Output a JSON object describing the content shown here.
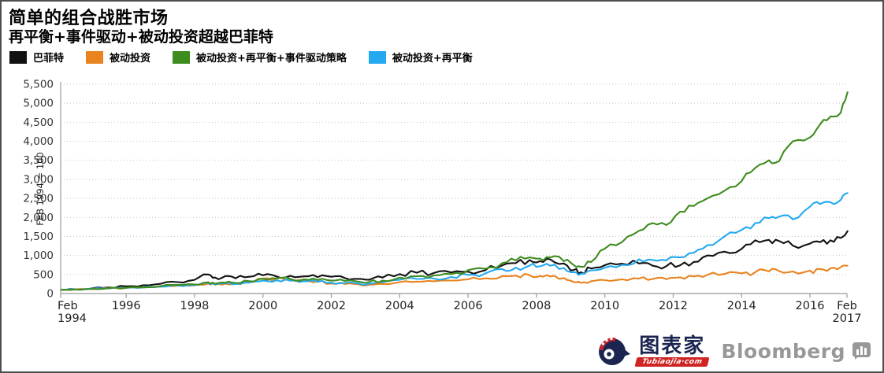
{
  "header": {
    "title": "简单的组合战胜市场",
    "subtitle": "再平衡+事件驱动+被动投资超越巴菲特"
  },
  "footer": {
    "tubiaojia_name": "图表家",
    "tubiaojia_domain": "Tubiaojia·com",
    "bloomberg": "Bloomberg"
  },
  "chart_data": {
    "type": "line",
    "title": "简单的组合战胜市场",
    "subtitle": "再平衡+事件驱动+被动投资超越巴菲特",
    "ylabel": "FEB 1994 = 100",
    "grid": true,
    "legend_position": "top",
    "y_axis": {
      "min": 0,
      "max": 5500,
      "step": 500,
      "tick_labels": [
        "0",
        "500",
        "1,000",
        "1,500",
        "2,000",
        "2,500",
        "3,000",
        "3,500",
        "4,000",
        "4,500",
        "5,000",
        "5,500"
      ]
    },
    "x_axis": {
      "start_year": 1994.083,
      "end_year": 2017.083,
      "ticks": [
        {
          "label": "Feb\n1994",
          "year": 1994.083,
          "anchor": "start"
        },
        {
          "label": "1996",
          "year": 1996
        },
        {
          "label": "1998",
          "year": 1998
        },
        {
          "label": "2000",
          "year": 2000
        },
        {
          "label": "2002",
          "year": 2002
        },
        {
          "label": "2004",
          "year": 2004
        },
        {
          "label": "2006",
          "year": 2006
        },
        {
          "label": "2008",
          "year": 2008
        },
        {
          "label": "2010",
          "year": 2010
        },
        {
          "label": "2012",
          "year": 2012
        },
        {
          "label": "2014",
          "year": 2014
        },
        {
          "label": "2016",
          "year": 2016
        },
        {
          "label": "Feb\n2017",
          "year": 2017.083,
          "anchor": "middle"
        }
      ]
    },
    "x": [
      1994.1,
      1994.5,
      1995,
      1995.5,
      1996,
      1996.5,
      1997,
      1997.5,
      1998,
      1998.4,
      1998.6,
      1998.9,
      1999.2,
      1999.6,
      2000,
      2000.4,
      2000.8,
      2001.2,
      2001.6,
      2002,
      2002.4,
      2002.8,
      2003.1,
      2003.5,
      2004,
      2004.5,
      2005,
      2005.5,
      2006,
      2006.5,
      2007,
      2007.4,
      2007.8,
      2008.1,
      2008.4,
      2008.8,
      2009.1,
      2009.3,
      2009.6,
      2010,
      2010.5,
      2011,
      2011.4,
      2011.8,
      2012.2,
      2012.6,
      2013,
      2013.5,
      2014,
      2014.4,
      2014.8,
      2015.1,
      2015.5,
      2016,
      2016.3,
      2016.6,
      2016.9,
      2017.1
    ],
    "series": [
      {
        "name": "巴菲特",
        "color": "#111111",
        "values": [
          100,
          110,
          135,
          160,
          190,
          220,
          255,
          300,
          360,
          500,
          420,
          460,
          400,
          440,
          480,
          450,
          465,
          450,
          430,
          440,
          405,
          385,
          360,
          420,
          510,
          545,
          540,
          555,
          575,
          610,
          740,
          800,
          880,
          850,
          900,
          790,
          620,
          560,
          660,
          745,
          785,
          790,
          730,
          720,
          740,
          830,
          1000,
          1100,
          1170,
          1400,
          1410,
          1380,
          1260,
          1310,
          1350,
          1400,
          1460,
          1640
        ]
      },
      {
        "name": "被动投资",
        "color": "#E8831D",
        "values": [
          100,
          105,
          120,
          132,
          145,
          158,
          180,
          205,
          215,
          262,
          232,
          256,
          266,
          310,
          390,
          392,
          378,
          350,
          320,
          262,
          250,
          242,
          230,
          255,
          300,
          312,
          322,
          342,
          372,
          400,
          460,
          470,
          482,
          462,
          450,
          408,
          300,
          280,
          325,
          352,
          372,
          392,
          382,
          378,
          425,
          450,
          490,
          512,
          530,
          560,
          582,
          590,
          578,
          602,
          640,
          662,
          692,
          730
        ]
      },
      {
        "name": "被动投资+再平衡+事件驱动策略",
        "color": "#3E8C1E",
        "values": [
          100,
          108,
          125,
          142,
          152,
          168,
          195,
          225,
          240,
          295,
          255,
          285,
          280,
          325,
          390,
          400,
          385,
          375,
          355,
          340,
          330,
          310,
          300,
          340,
          420,
          455,
          475,
          510,
          615,
          650,
          800,
          870,
          950,
          920,
          950,
          850,
          740,
          700,
          830,
          1180,
          1350,
          1650,
          1850,
          1800,
          2150,
          2300,
          2500,
          2700,
          2950,
          3300,
          3500,
          3480,
          4000,
          4100,
          4450,
          4650,
          4750,
          5290
        ]
      },
      {
        "name": "被动投资+再平衡",
        "color": "#24A9F0",
        "values": [
          100,
          106,
          122,
          136,
          148,
          162,
          185,
          212,
          222,
          272,
          240,
          262,
          252,
          288,
          340,
          350,
          338,
          325,
          305,
          285,
          278,
          262,
          255,
          295,
          360,
          382,
          392,
          435,
          490,
          525,
          640,
          680,
          735,
          715,
          730,
          670,
          560,
          520,
          610,
          680,
          755,
          900,
          880,
          870,
          950,
          1070,
          1270,
          1500,
          1670,
          1850,
          1980,
          2020,
          1950,
          2280,
          2350,
          2400,
          2460,
          2640
        ]
      }
    ]
  }
}
